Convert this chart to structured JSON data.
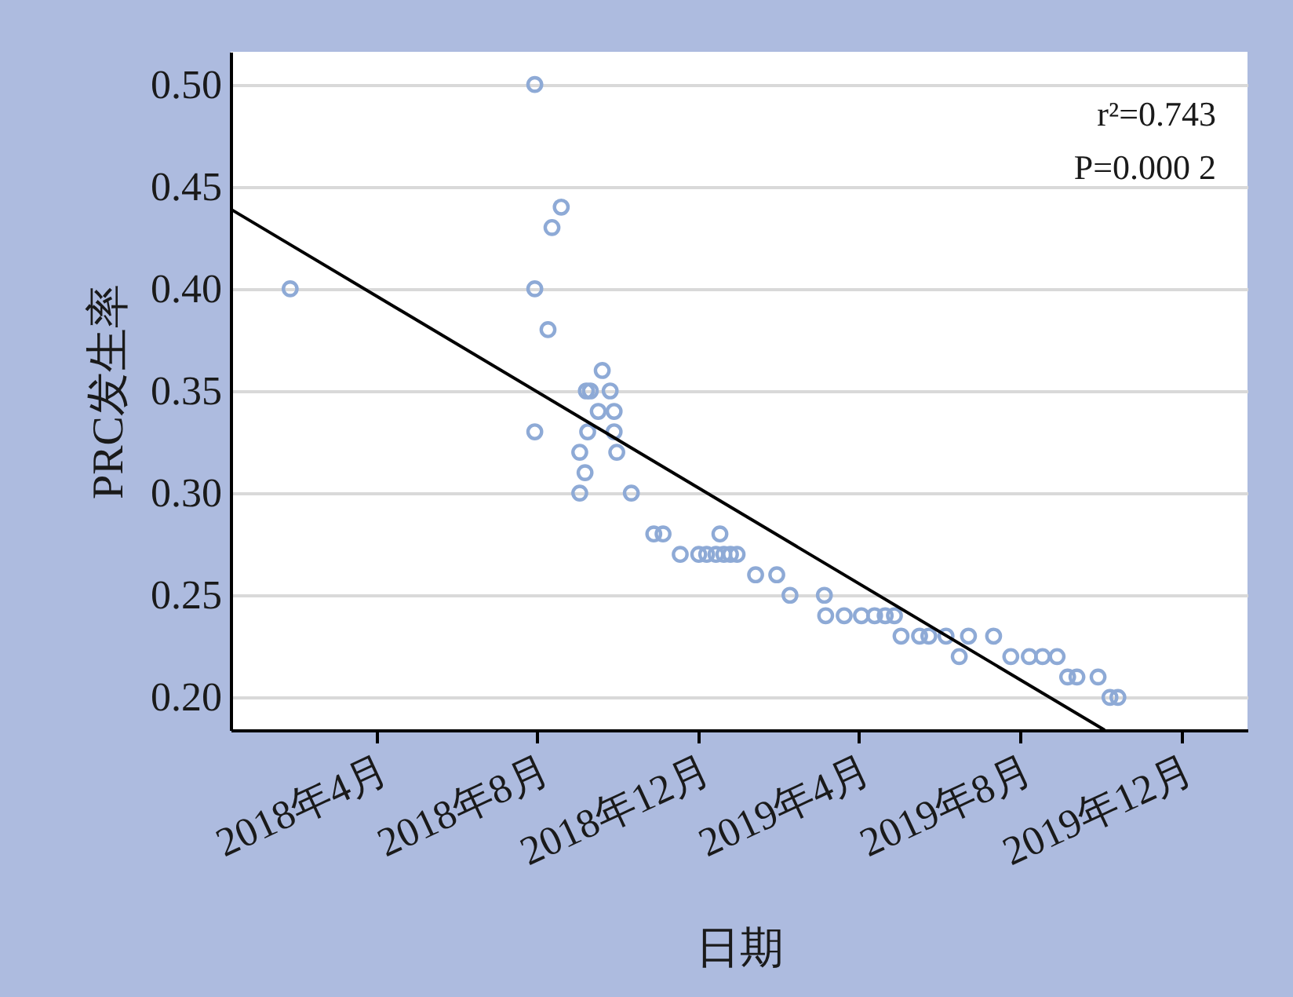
{
  "chart_data": {
    "type": "scatter",
    "xlabel": "日期",
    "ylabel": "PRC发生率",
    "annotations": [
      "r²=0.743",
      "P=0.000 2"
    ],
    "xlim": [
      "2017-12-12",
      "2020-01-20"
    ],
    "xticks": [
      {
        "value": "2018-04-01",
        "label": "2018年4月"
      },
      {
        "value": "2018-08-01",
        "label": "2018年8月"
      },
      {
        "value": "2018-12-01",
        "label": "2018年12月"
      },
      {
        "value": "2019-04-01",
        "label": "2019年4月"
      },
      {
        "value": "2019-08-01",
        "label": "2019年8月"
      },
      {
        "value": "2019-12-01",
        "label": "2019年12月"
      }
    ],
    "ylim": [
      0.184,
      0.516
    ],
    "yticks": [
      {
        "value": 0.2,
        "label": "0.20"
      },
      {
        "value": 0.25,
        "label": "0.25"
      },
      {
        "value": 0.3,
        "label": "0.30"
      },
      {
        "value": 0.35,
        "label": "0.35"
      },
      {
        "value": 0.4,
        "label": "0.40"
      },
      {
        "value": 0.45,
        "label": "0.45"
      },
      {
        "value": 0.5,
        "label": "0.50"
      }
    ],
    "grid": "y",
    "series": [
      {
        "color": "#8eaad6",
        "marker": "circle",
        "x": [
          "2018-01-26",
          "2018-07-30",
          "2018-07-30",
          "2018-07-30",
          "2018-08-09",
          "2018-08-12",
          "2018-08-19",
          "2018-09-02",
          "2018-09-02",
          "2018-09-06",
          "2018-09-07",
          "2018-09-08",
          "2018-09-10",
          "2018-09-16",
          "2018-09-19",
          "2018-09-25",
          "2018-09-28",
          "2018-09-28",
          "2018-09-30",
          "2018-10-11",
          "2018-10-28",
          "2018-11-04",
          "2018-11-17",
          "2018-12-01",
          "2018-12-07",
          "2018-12-14",
          "2018-12-17",
          "2018-12-20",
          "2018-12-25",
          "2018-12-30",
          "2019-01-13",
          "2019-01-29",
          "2019-02-08",
          "2019-03-06",
          "2019-03-07",
          "2019-03-21",
          "2019-04-03",
          "2019-04-13",
          "2019-04-21",
          "2019-04-28",
          "2019-05-03",
          "2019-05-17",
          "2019-05-24",
          "2019-06-06",
          "2019-06-16",
          "2019-06-23",
          "2019-07-12",
          "2019-07-25",
          "2019-08-08",
          "2019-08-18",
          "2019-08-29",
          "2019-09-06",
          "2019-09-13",
          "2019-09-29",
          "2019-10-08",
          "2019-10-14"
        ],
        "values": [
          0.4,
          0.5,
          0.4,
          0.33,
          0.38,
          0.43,
          0.44,
          0.32,
          0.3,
          0.31,
          0.35,
          0.33,
          0.35,
          0.34,
          0.36,
          0.35,
          0.34,
          0.33,
          0.32,
          0.3,
          0.28,
          0.28,
          0.27,
          0.27,
          0.27,
          0.27,
          0.28,
          0.27,
          0.27,
          0.27,
          0.26,
          0.26,
          0.25,
          0.25,
          0.24,
          0.24,
          0.24,
          0.24,
          0.24,
          0.24,
          0.23,
          0.23,
          0.23,
          0.23,
          0.22,
          0.23,
          0.23,
          0.22,
          0.22,
          0.22,
          0.22,
          0.21,
          0.21,
          0.21,
          0.2,
          0.2
        ]
      },
      {
        "type": "line",
        "marker": "none",
        "color": "#000000",
        "x": [
          "2017-12-12",
          "2019-10-04"
        ],
        "values": [
          0.439,
          0.184
        ]
      }
    ]
  }
}
